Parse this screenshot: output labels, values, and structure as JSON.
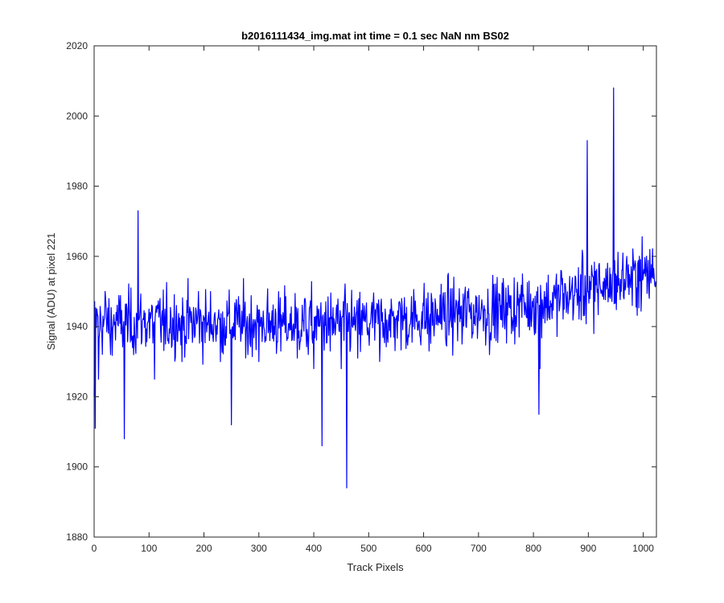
{
  "chart_data": {
    "type": "line",
    "title": "b2016111434_img.mat int time = 0.1 sec  NaN nm BS02",
    "xlabel": "Track Pixels",
    "ylabel": "Signal (ADU) at pixel 221",
    "xlim": [
      0,
      1024
    ],
    "ylim": [
      1880,
      2020
    ],
    "xticks": [
      0,
      100,
      200,
      300,
      400,
      500,
      600,
      700,
      800,
      900,
      1000
    ],
    "yticks": [
      1880,
      1900,
      1920,
      1940,
      1960,
      1980,
      2000,
      2020
    ],
    "grid": false,
    "series": [
      {
        "color": "#0000ff",
        "n_points": 1024,
        "values_at": {
          "x": [
            0,
            2,
            5,
            8,
            10,
            20,
            30,
            40,
            55,
            60,
            70,
            80,
            90,
            100,
            110,
            120,
            130,
            140,
            150,
            160,
            170,
            180,
            190,
            200,
            210,
            220,
            230,
            240,
            250,
            260,
            270,
            280,
            290,
            300,
            310,
            320,
            330,
            340,
            350,
            360,
            370,
            380,
            390,
            400,
            410,
            415,
            420,
            430,
            440,
            450,
            460,
            470,
            480,
            490,
            500,
            510,
            520,
            530,
            540,
            550,
            560,
            570,
            580,
            590,
            600,
            610,
            620,
            630,
            640,
            650,
            660,
            670,
            680,
            690,
            700,
            710,
            720,
            730,
            740,
            750,
            760,
            770,
            780,
            790,
            800,
            810,
            812,
            820,
            830,
            840,
            850,
            860,
            870,
            880,
            890,
            898,
            900,
            910,
            920,
            930,
            940,
            946,
            950,
            960,
            970,
            980,
            990,
            1000,
            1010,
            1024
          ],
          "y": [
            1920,
            1911,
            1945,
            1925,
            1938,
            1950,
            1932,
            1944,
            1908,
            1945,
            1934,
            1973,
            1942,
            1945,
            1925,
            1948,
            1935,
            1943,
            1946,
            1930,
            1944,
            1938,
            1950,
            1942,
            1936,
            1944,
            1930,
            1940,
            1912,
            1944,
            1938,
            1932,
            1942,
            1930,
            1939,
            1936,
            1945,
            1933,
            1940,
            1936,
            1931,
            1942,
            1932,
            1928,
            1940,
            1906,
            1944,
            1933,
            1940,
            1928,
            1894,
            1940,
            1931,
            1943,
            1938,
            1944,
            1930,
            1945,
            1937,
            1942,
            1948,
            1936,
            1944,
            1939,
            1946,
            1933,
            1941,
            1949,
            1937,
            1943,
            1947,
            1935,
            1950,
            1938,
            1944,
            1946,
            1932,
            1945,
            1942,
            1951,
            1938,
            1947,
            1955,
            1940,
            1948,
            1915,
            1928,
            1950,
            1942,
            1948,
            1956,
            1944,
            1952,
            1946,
            1960,
            1993,
            1950,
            1938,
            1958,
            1953,
            1948,
            2008,
            1955,
            1950,
            1960,
            1946,
            1958,
            1954,
            1950,
            1958
          ]
        }
      }
    ]
  }
}
